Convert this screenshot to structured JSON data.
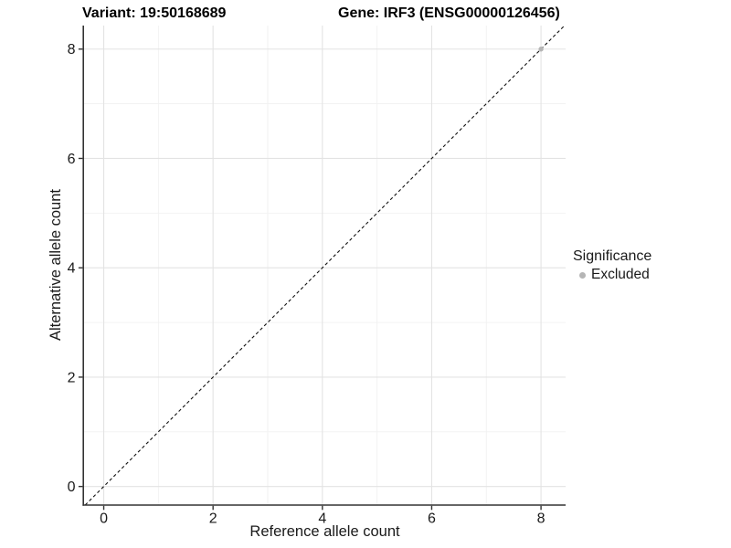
{
  "chart_data": {
    "type": "scatter",
    "title_left": "Variant: 19:50168689",
    "title_right": "Gene: IRF3 (ENSG00000126456)",
    "xlabel": "Reference allele count",
    "ylabel": "Alternative allele count",
    "xlim": [
      -0.36,
      8.45
    ],
    "ylim": [
      -0.34,
      8.43
    ],
    "x_ticks": [
      0,
      2,
      4,
      6,
      8
    ],
    "y_ticks": [
      0,
      2,
      4,
      6,
      8
    ],
    "x_minor_ticks": [
      1,
      3,
      5,
      7
    ],
    "y_minor_ticks": [
      1,
      3,
      5,
      7
    ],
    "grid": "major+minor",
    "points": [
      {
        "x": 8,
        "y": 8,
        "group": "Excluded"
      }
    ],
    "abline": {
      "slope": 1,
      "intercept": 0,
      "linetype": "dashed"
    },
    "legend": {
      "title": "Significance",
      "position": "right",
      "items": [
        {
          "label": "Excluded",
          "color": "#b5b5b5"
        }
      ]
    },
    "colors": {
      "point": "#b5b5b5",
      "grid_major": "#e3e3e3",
      "grid_minor": "#f1f1f1",
      "axis_line": "#333333",
      "reference_line": "#111111",
      "text": "#1a1a1a"
    }
  }
}
